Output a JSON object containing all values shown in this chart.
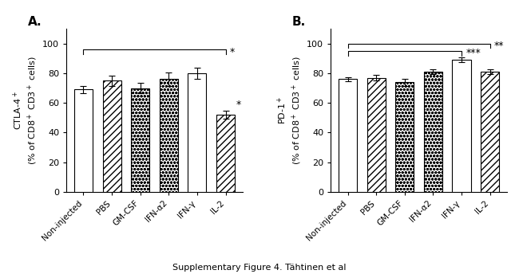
{
  "panel_A": {
    "label": "A.",
    "ylabel": "CTLA-4$^+$\n(% of CD8$^+$ CD3$^+$ cells)",
    "categories": [
      "Non-injected",
      "PBS",
      "GM-CSF",
      "IFN-α2",
      "IFN-γ",
      "IL-2"
    ],
    "values": [
      69,
      75,
      70,
      76,
      80,
      52
    ],
    "errors": [
      2.5,
      3.5,
      3.5,
      4.5,
      3.5,
      2.5
    ],
    "patterns": [
      "",
      "////",
      "....",
      "....",
      "",
      "////"
    ],
    "bar_face_colors": [
      "white",
      "white",
      "white",
      "white",
      "white",
      "white"
    ]
  },
  "panel_B": {
    "label": "B.",
    "ylabel": "PD-1$^+$\n(% of CD8$^+$ CD3$^+$ cells)",
    "categories": [
      "Non-injected",
      "PBS",
      "GM-CSF",
      "IFN-α2",
      "IFN-γ",
      "IL-2"
    ],
    "values": [
      76,
      77,
      74,
      81,
      89,
      81
    ],
    "errors": [
      1.5,
      2.0,
      2.5,
      1.5,
      1.5,
      1.5
    ],
    "patterns": [
      "",
      "////",
      "....",
      "....",
      "",
      "////"
    ],
    "bar_face_colors": [
      "white",
      "white",
      "white",
      "white",
      "white",
      "white"
    ]
  },
  "ylim": [
    0,
    110
  ],
  "yticks": [
    0,
    20,
    40,
    60,
    80,
    100
  ],
  "caption": "Supplementary Figure 4. Tähtinen et al",
  "figure_width": 6.5,
  "figure_height": 3.44
}
